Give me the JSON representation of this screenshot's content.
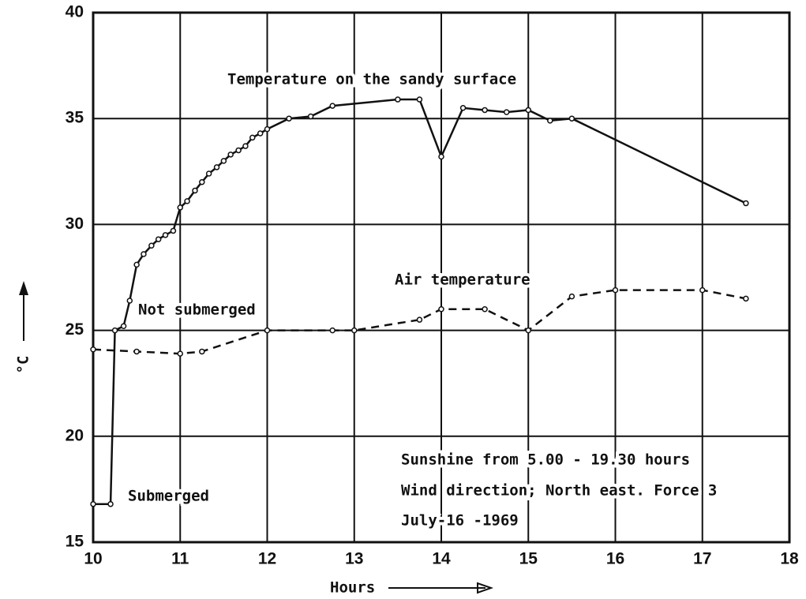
{
  "chart_data": {
    "type": "line",
    "x_label": "Hours",
    "y_label": "°C",
    "xlim": [
      10,
      18
    ],
    "xticks": [
      10,
      11,
      12,
      13,
      14,
      15,
      16,
      17,
      18
    ],
    "ylim": [
      15,
      40
    ],
    "yticks": [
      15,
      20,
      25,
      30,
      35,
      40
    ],
    "grid": true,
    "series": [
      {
        "name": "Temperature on the sandy surface",
        "color": "#111111",
        "style": "solid",
        "x": [
          10.0,
          10.2,
          10.25,
          10.35,
          10.42,
          10.5,
          10.58,
          10.67,
          10.75,
          10.83,
          10.92,
          11.0,
          11.08,
          11.17,
          11.25,
          11.33,
          11.42,
          11.5,
          11.58,
          11.67,
          11.75,
          11.83,
          11.92,
          12.0,
          12.25,
          12.5,
          12.75,
          13.5,
          13.75,
          14.0,
          14.25,
          14.5,
          14.75,
          15.0,
          15.25,
          15.5,
          17.5
        ],
        "values": [
          16.8,
          16.8,
          25.0,
          25.2,
          26.4,
          28.1,
          28.6,
          29.0,
          29.3,
          29.5,
          29.7,
          30.8,
          31.1,
          31.6,
          32.0,
          32.4,
          32.7,
          33.0,
          33.3,
          33.5,
          33.7,
          34.1,
          34.3,
          34.5,
          35.0,
          35.1,
          35.6,
          35.9,
          35.9,
          33.2,
          35.5,
          35.4,
          35.3,
          35.4,
          34.9,
          35.0,
          31.0
        ]
      },
      {
        "name": "Air temperature",
        "color": "#111111",
        "style": "dashed",
        "x": [
          10.0,
          10.5,
          11.0,
          11.25,
          12.0,
          12.75,
          13.0,
          13.75,
          14.0,
          14.5,
          15.0,
          15.5,
          16.0,
          17.0,
          17.5
        ],
        "values": [
          24.1,
          24.0,
          23.9,
          24.0,
          25.0,
          25.0,
          25.0,
          25.5,
          26.0,
          26.0,
          25.0,
          26.6,
          26.9,
          26.9,
          26.5
        ]
      }
    ],
    "annotations": [
      "Not submerged",
      "Submerged",
      "Sunshine  from 5.00 - 19.30 hours",
      "Wind  direction; North east. Force 3",
      "July-16 -1969"
    ]
  }
}
